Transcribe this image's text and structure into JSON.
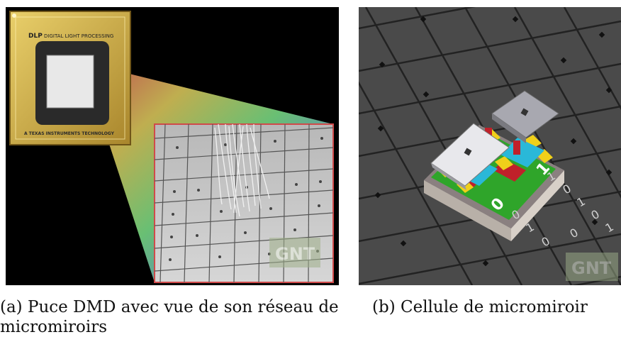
{
  "figure": {
    "panel_a": {
      "chip_brand_logo": "DLP",
      "chip_title": "DIGITAL LIGHT PROCESSING",
      "chip_subtitle": "A TEXAS INSTRUMENTS TECHNOLOGY",
      "watermark": "GNT",
      "caption": "(a) Puce DMD avec vue de son réseau de micromiroirs"
    },
    "panel_b": {
      "bit_zero": "0",
      "bit_one": "1",
      "binary_stream": [
        "0",
        "1",
        "0",
        "1",
        "0",
        "1",
        "0",
        "1",
        "0"
      ],
      "watermark": "GNT",
      "caption": "(b) Cellule de micromiroir"
    }
  },
  "colors": {
    "chip_gold": "#c9a640",
    "mirror_grey": "#8a8a8a",
    "cell_green": "#2fa52a",
    "cell_yellow": "#f0d01a",
    "cell_cyan": "#2ab8d8",
    "cell_red": "#c0202a"
  }
}
